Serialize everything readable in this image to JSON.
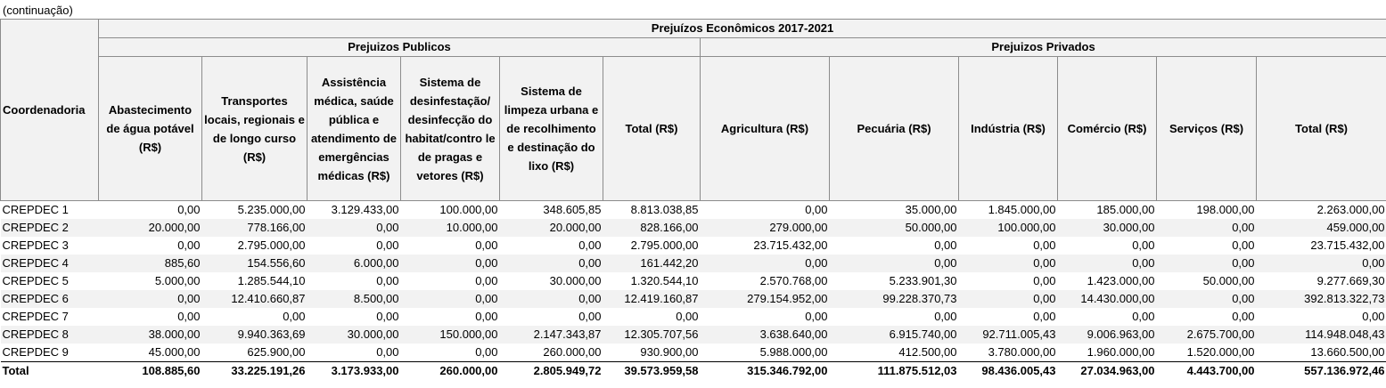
{
  "caption": "(continuação)",
  "header": {
    "title": "Prejuízos Econômicos 2017-2021",
    "group_public": "Prejuizos Publicos",
    "group_private": "Prejuizos Privados",
    "coord": "Coordenadoria",
    "cols": [
      "Abastecimento de água potável (R$)",
      "Transportes locais, regionais e de longo curso (R$)",
      "Assistência médica, saúde pública e atendimento de emergências médicas (R$)",
      "Sistema de desinfestação/ desinfecção do habitat/contro le de pragas e vetores (R$)",
      "Sistema de limpeza urbana e de recolhimento e destinação do lixo (R$)",
      "Total (R$)",
      "Agricultura (R$)",
      "Pecuária (R$)",
      "Indústria (R$)",
      "Comércio (R$)",
      "Serviços (R$)",
      "Total (R$)"
    ]
  },
  "rows": [
    {
      "label": "CREPDEC 1",
      "values": [
        "0,00",
        "5.235.000,00",
        "3.129.433,00",
        "100.000,00",
        "348.605,85",
        "8.813.038,85",
        "0,00",
        "35.000,00",
        "1.845.000,00",
        "185.000,00",
        "198.000,00",
        "2.263.000,00"
      ]
    },
    {
      "label": "CREPDEC 2",
      "values": [
        "20.000,00",
        "778.166,00",
        "0,00",
        "10.000,00",
        "20.000,00",
        "828.166,00",
        "279.000,00",
        "50.000,00",
        "100.000,00",
        "30.000,00",
        "0,00",
        "459.000,00"
      ]
    },
    {
      "label": "CREPDEC 3",
      "values": [
        "0,00",
        "2.795.000,00",
        "0,00",
        "0,00",
        "0,00",
        "2.795.000,00",
        "23.715.432,00",
        "0,00",
        "0,00",
        "0,00",
        "0,00",
        "23.715.432,00"
      ]
    },
    {
      "label": "CREPDEC 4",
      "values": [
        "885,60",
        "154.556,60",
        "6.000,00",
        "0,00",
        "0,00",
        "161.442,20",
        "0,00",
        "0,00",
        "0,00",
        "0,00",
        "0,00",
        "0,00"
      ]
    },
    {
      "label": "CREPDEC 5",
      "values": [
        "5.000,00",
        "1.285.544,10",
        "0,00",
        "0,00",
        "30.000,00",
        "1.320.544,10",
        "2.570.768,00",
        "5.233.901,30",
        "0,00",
        "1.423.000,00",
        "50.000,00",
        "9.277.669,30"
      ]
    },
    {
      "label": "CREPDEC 6",
      "values": [
        "0,00",
        "12.410.660,87",
        "8.500,00",
        "0,00",
        "0,00",
        "12.419.160,87",
        "279.154.952,00",
        "99.228.370,73",
        "0,00",
        "14.430.000,00",
        "0,00",
        "392.813.322,73"
      ]
    },
    {
      "label": "CREPDEC 7",
      "values": [
        "0,00",
        "0,00",
        "0,00",
        "0,00",
        "0,00",
        "0,00",
        "0,00",
        "0,00",
        "0,00",
        "0,00",
        "0,00",
        "0,00"
      ]
    },
    {
      "label": "CREPDEC 8",
      "values": [
        "38.000,00",
        "9.940.363,69",
        "30.000,00",
        "150.000,00",
        "2.147.343,87",
        "12.305.707,56",
        "3.638.640,00",
        "6.915.740,00",
        "92.711.005,43",
        "9.006.963,00",
        "2.675.700,00",
        "114.948.048,43"
      ]
    },
    {
      "label": "CREPDEC 9",
      "values": [
        "45.000,00",
        "625.900,00",
        "0,00",
        "0,00",
        "260.000,00",
        "930.900,00",
        "5.988.000,00",
        "412.500,00",
        "3.780.000,00",
        "1.960.000,00",
        "1.520.000,00",
        "13.660.500,00"
      ]
    }
  ],
  "total": {
    "label": "Total",
    "values": [
      "108.885,60",
      "33.225.191,26",
      "3.173.933,00",
      "260.000,00",
      "2.805.949,72",
      "39.573.959,58",
      "315.346.792,00",
      "111.875.512,03",
      "98.436.005,43",
      "27.034.963,00",
      "4.443.700,00",
      "557.136.972,46"
    ]
  }
}
